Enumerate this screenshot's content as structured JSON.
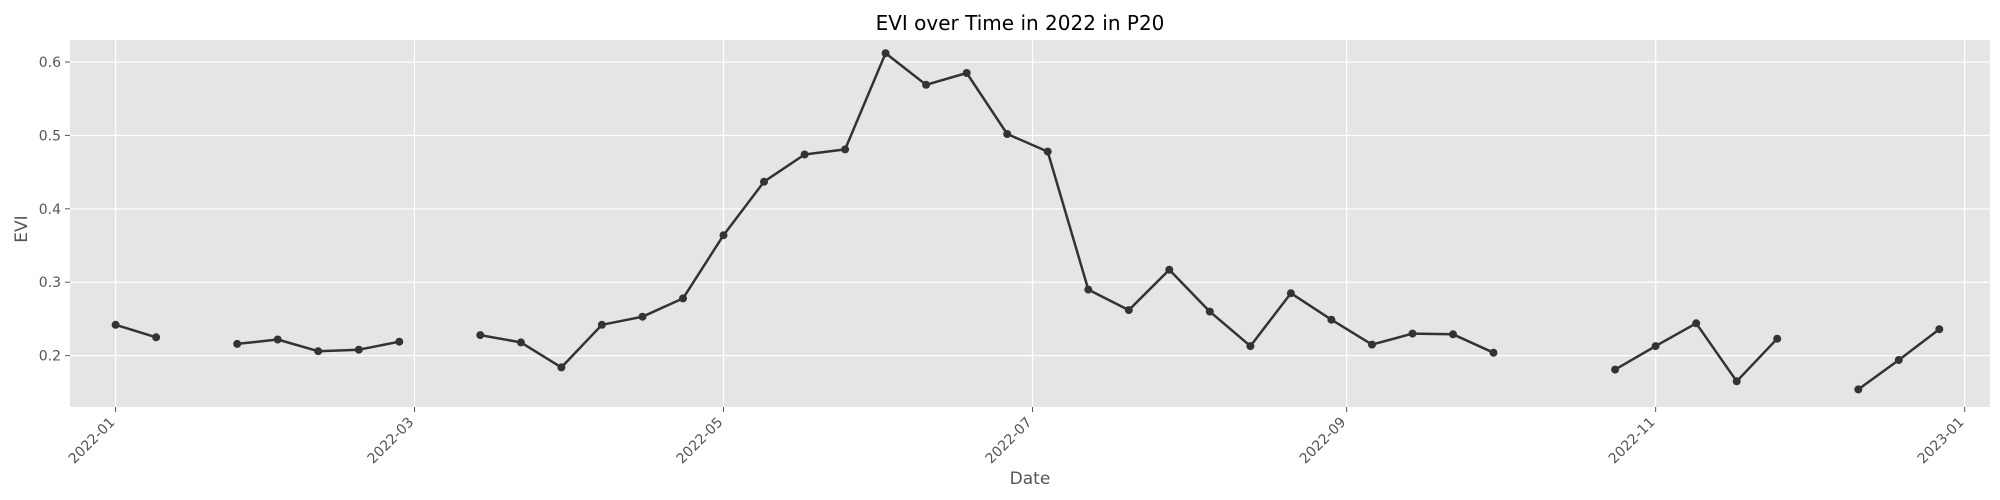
{
  "chart_data": {
    "type": "line",
    "title": "EVI over Time in 2022 in P20",
    "xlabel": "Date",
    "ylabel": "EVI",
    "x_ticks": [
      "2022-01",
      "2022-03",
      "2022-05",
      "2022-07",
      "2022-09",
      "2022-11",
      "2023-01"
    ],
    "y_ticks": [
      "0.2",
      "0.3",
      "0.4",
      "0.5",
      "0.6"
    ],
    "xlim": [
      "2021-12-23",
      "2023-01-06"
    ],
    "ylim": [
      0.13,
      0.63
    ],
    "grid": true,
    "line_color": "#333333",
    "background_color": "#e5e5e5",
    "grid_color": "#ffffff",
    "series": [
      {
        "segments": [
          [
            [
              "2022-01-01",
              0.242
            ],
            [
              "2022-01-09",
              0.225
            ]
          ],
          [
            [
              "2022-01-25",
              0.216
            ],
            [
              "2022-02-02",
              0.222
            ],
            [
              "2022-02-10",
              0.206
            ],
            [
              "2022-02-18",
              0.208
            ],
            [
              "2022-02-26",
              0.219
            ]
          ],
          [
            [
              "2022-03-14",
              0.228
            ],
            [
              "2022-03-22",
              0.218
            ],
            [
              "2022-03-30",
              0.184
            ],
            [
              "2022-04-07",
              0.242
            ],
            [
              "2022-04-15",
              0.253
            ],
            [
              "2022-04-23",
              0.278
            ],
            [
              "2022-05-01",
              0.364
            ],
            [
              "2022-05-09",
              0.437
            ],
            [
              "2022-05-17",
              0.474
            ],
            [
              "2022-05-25",
              0.481
            ],
            [
              "2022-06-02",
              0.612
            ],
            [
              "2022-06-10",
              0.569
            ],
            [
              "2022-06-18",
              0.585
            ],
            [
              "2022-06-26",
              0.502
            ],
            [
              "2022-07-04",
              0.478
            ],
            [
              "2022-07-12",
              0.29
            ],
            [
              "2022-07-20",
              0.262
            ],
            [
              "2022-07-28",
              0.317
            ],
            [
              "2022-08-05",
              0.26
            ],
            [
              "2022-08-13",
              0.213
            ],
            [
              "2022-08-21",
              0.285
            ],
            [
              "2022-08-29",
              0.249
            ],
            [
              "2022-09-06",
              0.215
            ],
            [
              "2022-09-14",
              0.23
            ],
            [
              "2022-09-22",
              0.229
            ],
            [
              "2022-09-30",
              0.204
            ]
          ],
          [
            [
              "2022-10-24",
              0.181
            ],
            [
              "2022-11-01",
              0.213
            ],
            [
              "2022-11-09",
              0.244
            ],
            [
              "2022-11-17",
              0.165
            ],
            [
              "2022-11-25",
              0.223
            ]
          ],
          [
            [
              "2022-12-11",
              0.154
            ],
            [
              "2022-12-19",
              0.194
            ],
            [
              "2022-12-27",
              0.236
            ]
          ]
        ]
      }
    ]
  }
}
